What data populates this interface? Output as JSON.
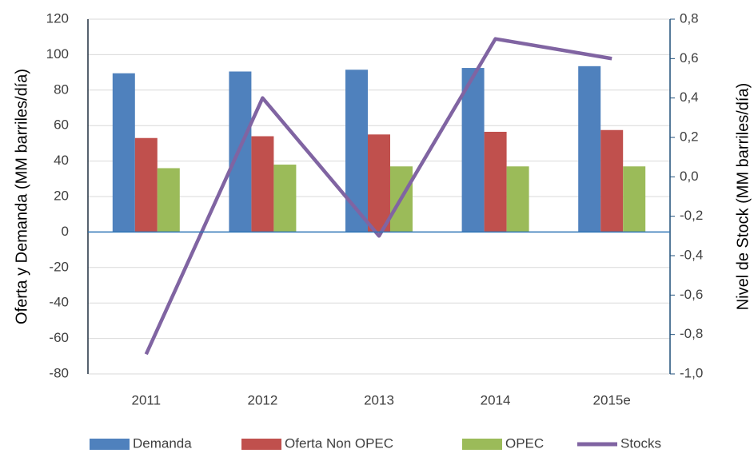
{
  "chart_data": {
    "type": "bar",
    "categories": [
      "2011",
      "2012",
      "2013",
      "2014",
      "2015e"
    ],
    "y_label": "Oferta y Demanda (MM barriles/día)",
    "y2_label": "Nivel de Stock (MM barriles/día)",
    "ylim": [
      -80,
      120
    ],
    "yticks": [
      -80,
      -60,
      -40,
      -20,
      0,
      20,
      40,
      60,
      80,
      100,
      120
    ],
    "y2lim": [
      -1.0,
      0.8
    ],
    "y2ticks": [
      {
        "value": -1.0,
        "label": "-1,0"
      },
      {
        "value": -0.8,
        "label": "-0,8"
      },
      {
        "value": -0.6,
        "label": "-0,6"
      },
      {
        "value": -0.4,
        "label": "-0,4"
      },
      {
        "value": -0.2,
        "label": "-0,2"
      },
      {
        "value": 0.0,
        "label": "0,0"
      },
      {
        "value": 0.2,
        "label": "0,2"
      },
      {
        "value": 0.4,
        "label": "0,4"
      },
      {
        "value": 0.6,
        "label": "0,6"
      },
      {
        "value": 0.8,
        "label": "0,8"
      }
    ],
    "grid": true,
    "legend": "bottom",
    "series": [
      {
        "name": "Demanda",
        "color": "#4f81bd",
        "values": [
          89.5,
          90.5,
          91.5,
          92.5,
          93.5
        ]
      },
      {
        "name": "Oferta Non OPEC",
        "color": "#c0504d",
        "values": [
          53,
          54,
          55,
          56.5,
          57.5
        ]
      },
      {
        "name": "OPEC",
        "color": "#9bbb59",
        "values": [
          36,
          38,
          37,
          37,
          37
        ]
      },
      {
        "name": "Stocks",
        "color": "#8064a2",
        "type": "line",
        "axis": "y2",
        "values": [
          -0.9,
          0.4,
          -0.3,
          0.7,
          0.6
        ]
      }
    ]
  }
}
